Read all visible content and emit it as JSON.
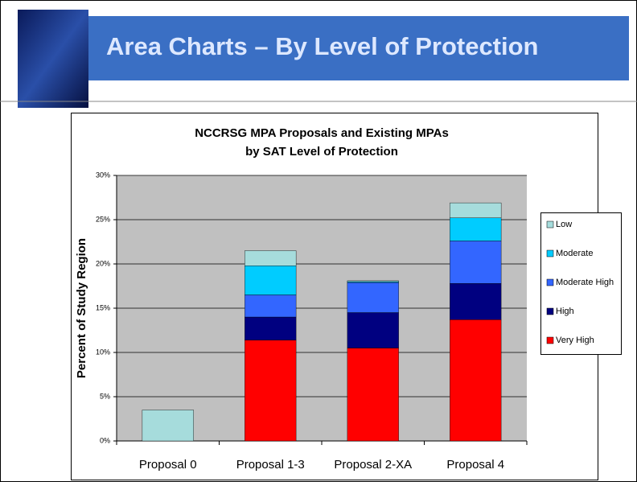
{
  "slide_title": "Area Charts – By Level of Protection",
  "chart_data": {
    "type": "stacked_bar",
    "title": [
      "NCCRSG MPA Proposals and Existing MPAs",
      "by SAT Level of Protection"
    ],
    "y_label": "Percent of Study Region",
    "categories": [
      "Proposal 0",
      "Proposal 1-3",
      "Proposal 2-XA",
      "Proposal 4"
    ],
    "series": [
      {
        "name": "Low",
        "color": "#a6dcdc",
        "values": [
          3.5,
          1.7,
          0.1,
          1.7
        ]
      },
      {
        "name": "Moderate",
        "color": "#00ccff",
        "values": [
          0,
          3.3,
          0.1,
          2.6
        ]
      },
      {
        "name": "Moderate High",
        "color": "#3366ff",
        "values": [
          0,
          2.5,
          3.4,
          4.8
        ]
      },
      {
        "name": "High",
        "color": "#000080",
        "values": [
          0,
          2.6,
          4.0,
          4.1
        ]
      },
      {
        "name": "Very High",
        "color": "#ff0000",
        "values": [
          0,
          11.4,
          10.5,
          13.7
        ]
      }
    ],
    "ylim": [
      0,
      30
    ],
    "yticks": [
      {
        "value": 0,
        "label": "0%"
      },
      {
        "value": 5,
        "label": "5%"
      },
      {
        "value": 10,
        "label": "10%"
      },
      {
        "value": 15,
        "label": "15%"
      },
      {
        "value": 20,
        "label": "20%"
      },
      {
        "value": 25,
        "label": "25%"
      },
      {
        "value": 30,
        "label": "30%"
      }
    ],
    "grid": true,
    "plot_background": "#c0c0c0",
    "legend": "right"
  }
}
